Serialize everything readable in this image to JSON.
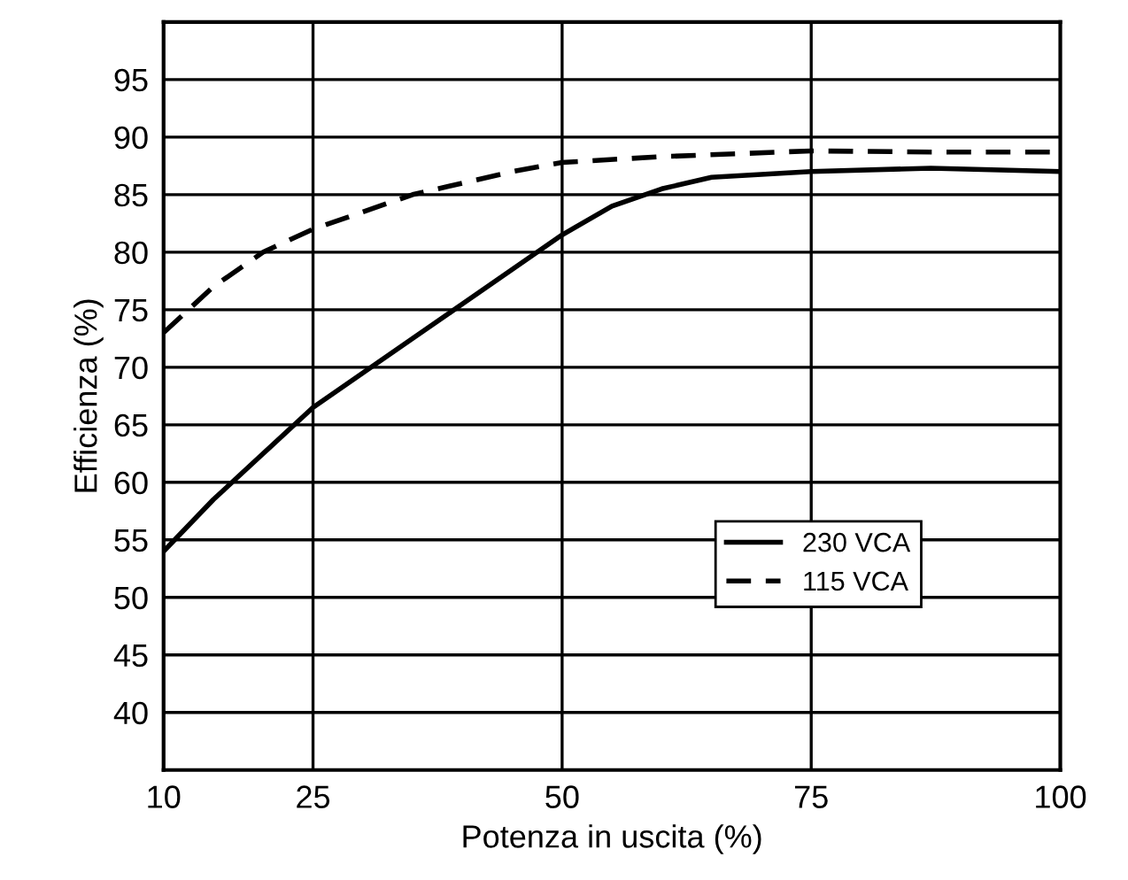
{
  "chart_data": {
    "type": "line",
    "xlabel": "Potenza in uscita (%)",
    "ylabel": "Efficienza (%)",
    "xlim": [
      10,
      100
    ],
    "xticks": [
      10,
      25,
      50,
      75,
      100
    ],
    "ylim": [
      35,
      100
    ],
    "yticks": [
      40,
      45,
      50,
      55,
      60,
      65,
      70,
      75,
      80,
      85,
      90,
      95
    ],
    "grid": true,
    "legend": "bottom right",
    "marker": "none",
    "series": [
      {
        "name": "230 VCA",
        "color": "#000000",
        "line_style": "solid",
        "x": [
          10,
          15,
          20,
          25,
          30,
          35,
          40,
          45,
          50,
          55,
          60,
          65,
          75,
          87,
          100
        ],
        "values": [
          54,
          58.5,
          62.5,
          66.5,
          69.5,
          72.5,
          75.5,
          78.5,
          81.5,
          84,
          85.5,
          86.5,
          87,
          87.3,
          87
        ]
      },
      {
        "name": "115 VCA",
        "color": "#000000",
        "line_style": "dashed",
        "x": [
          10,
          15,
          20,
          25,
          30,
          35,
          40,
          45,
          50,
          60,
          75,
          87,
          100
        ],
        "values": [
          73,
          77,
          80,
          82,
          83.5,
          85,
          86,
          87,
          87.8,
          88.3,
          88.8,
          88.7,
          88.7
        ]
      }
    ]
  }
}
